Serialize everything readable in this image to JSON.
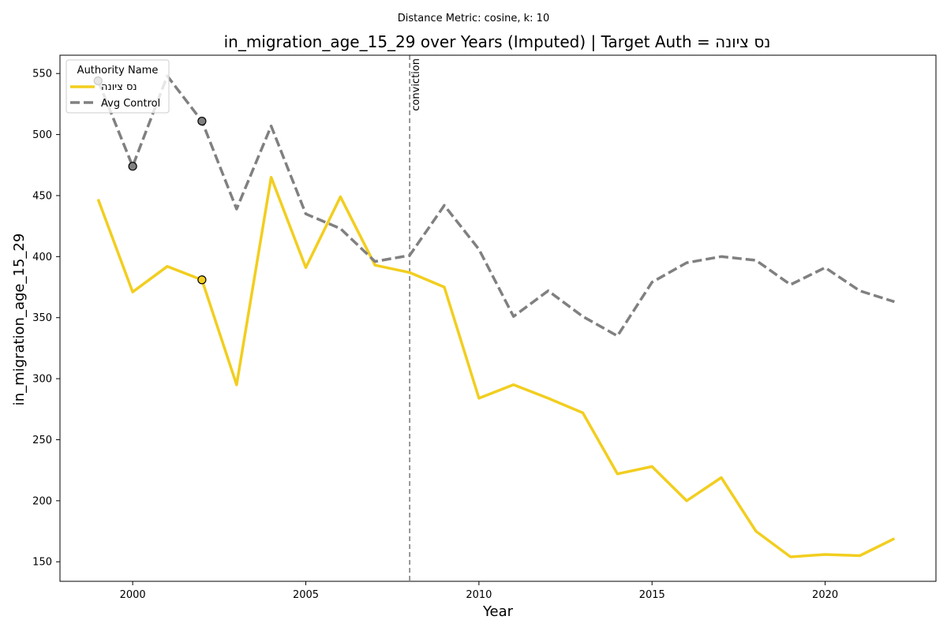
{
  "chart_data": {
    "type": "line",
    "supertitle": "Distance Metric: cosine, k: 10",
    "title": "in_migration_age_15_29 over Years (Imputed) | Target Auth = נס ציונה",
    "xlabel": "Year",
    "ylabel": "in_migration_age_15_29",
    "xlim": [
      1997.9,
      2023.2
    ],
    "ylim": [
      134,
      565
    ],
    "xticks": [
      2000,
      2005,
      2010,
      2015,
      2020
    ],
    "yticks": [
      150,
      200,
      250,
      300,
      350,
      400,
      450,
      500,
      550
    ],
    "legend": {
      "title": "Authority Name",
      "position": "top-left"
    },
    "series": [
      {
        "name": "נס ציונה",
        "color": "#f2ce1f",
        "style": "solid",
        "x": [
          1999,
          2000,
          2001,
          2002,
          2003,
          2004,
          2005,
          2006,
          2007,
          2008,
          2009,
          2010,
          2011,
          2012,
          2013,
          2014,
          2015,
          2016,
          2017,
          2018,
          2019,
          2020,
          2021,
          2022
        ],
        "values": [
          447,
          371,
          392,
          381,
          295,
          465,
          391,
          449,
          393,
          387,
          375,
          284,
          295,
          284,
          272,
          222,
          228,
          200,
          219,
          175,
          154,
          156,
          155,
          169
        ],
        "imputed_x": [
          2002
        ],
        "imputed_values": [
          381
        ]
      },
      {
        "name": "Avg Control",
        "color": "#808080",
        "style": "dashed",
        "x": [
          1999,
          2000,
          2001,
          2002,
          2003,
          2004,
          2005,
          2006,
          2007,
          2008,
          2009,
          2010,
          2011,
          2012,
          2013,
          2014,
          2015,
          2016,
          2017,
          2018,
          2019,
          2020,
          2021,
          2022
        ],
        "values": [
          544,
          474,
          548,
          511,
          439,
          507,
          435,
          423,
          396,
          401,
          442,
          406,
          351,
          372,
          351,
          335,
          379,
          395,
          400,
          397,
          377,
          391,
          372,
          363
        ],
        "imputed_x": [
          1999,
          2000,
          2002
        ],
        "imputed_values": [
          544,
          474,
          511
        ]
      }
    ],
    "vline": {
      "x": 2008,
      "label": "conviction",
      "color": "#808080"
    }
  }
}
